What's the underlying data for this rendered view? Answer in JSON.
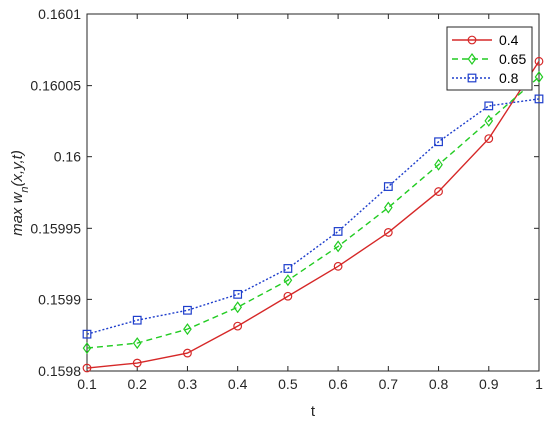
{
  "chart_data": {
    "type": "line",
    "title": "",
    "xlabel": "t",
    "ylabel": "max w_n(x,y,t)",
    "xlim": [
      0.1,
      1
    ],
    "ylim": [
      0.1598498,
      0.1601
    ],
    "xticks": [
      0.1,
      0.2,
      0.3,
      0.4,
      0.5,
      0.6,
      0.7,
      0.8,
      0.9,
      1
    ],
    "xtick_labels": [
      "0.1",
      "0.2",
      "0.3",
      "0.4",
      "0.5",
      "0.6",
      "0.7",
      "0.8",
      "0.9",
      "1"
    ],
    "yticks": [
      0.1598498,
      0.1599,
      0.1599498,
      0.16,
      0.1600498,
      0.1601
    ],
    "ytick_labels": [
      "0.1598",
      "0.1599",
      "0.15995",
      "0.16",
      "0.16005",
      "0.1601"
    ],
    "grid": false,
    "legend_position": "top-right",
    "x": [
      0.1,
      0.2,
      0.3,
      0.4,
      0.5,
      0.6,
      0.7,
      0.8,
      0.9,
      1.0
    ],
    "series": [
      {
        "name": "0.4",
        "color": "#d62828",
        "line_style": "solid",
        "marker": "circle",
        "values": [
          0.15985189,
          0.15985539,
          0.15986236,
          0.15988125,
          0.15990221,
          0.15992316,
          0.15994692,
          0.15997555,
          0.16001267,
          0.16006685
        ]
      },
      {
        "name": "0.65",
        "color": "#22cc22",
        "line_style": "dashed",
        "marker": "diamond",
        "values": [
          0.15986585,
          0.15986934,
          0.15987913,
          0.15989449,
          0.15991338,
          0.15993712,
          0.15996435,
          0.15999438,
          0.16002513,
          0.16005585
        ]
      },
      {
        "name": "0.8",
        "color": "#1f3fcc",
        "line_style": "dotted",
        "marker": "square",
        "values": [
          0.15987561,
          0.15988541,
          0.15989236,
          0.15990351,
          0.15992166,
          0.15994761,
          0.15997906,
          0.16001047,
          0.16003561,
          0.16004049
        ]
      }
    ]
  }
}
